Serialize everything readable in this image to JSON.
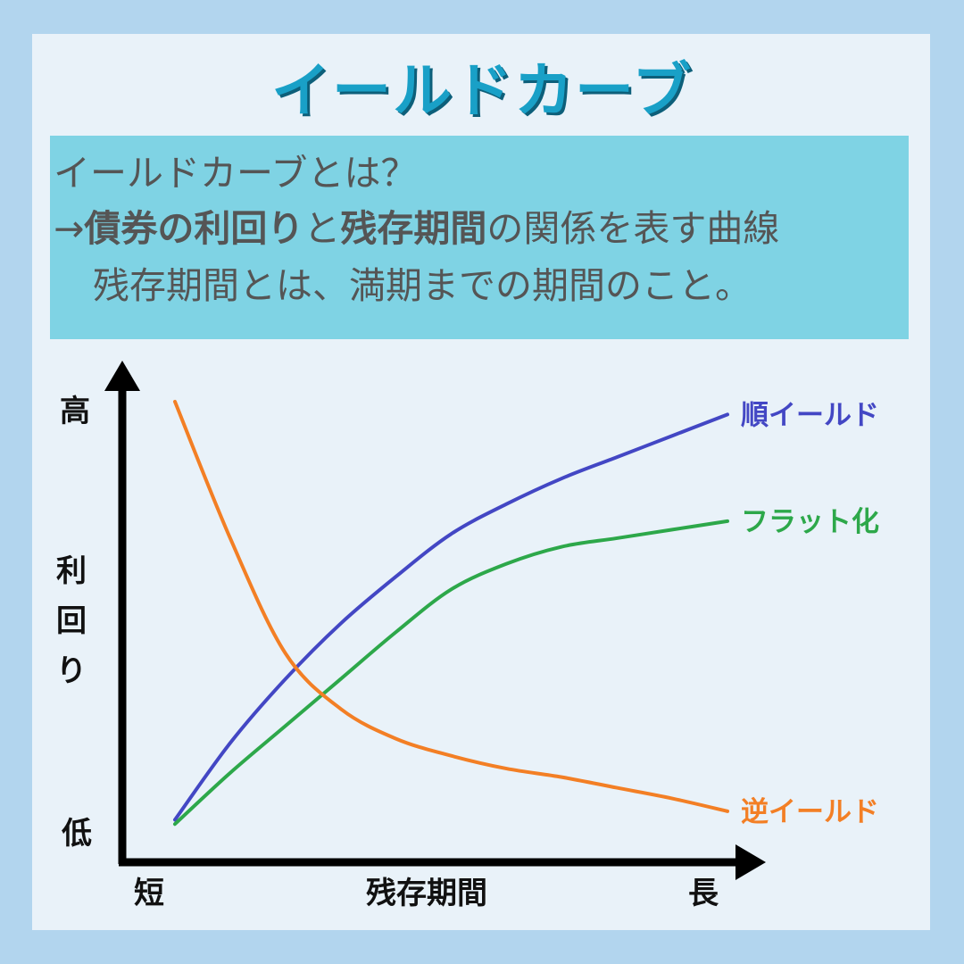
{
  "title": "イールドカーブ",
  "definition": {
    "question": "イールドカーブとは？",
    "answer_arrow": "→",
    "answer_bold1": "債券の利回り",
    "answer_mid": "と",
    "answer_bold2": "残存期間",
    "answer_rest": "の関係を表す曲線",
    "note": "残存期間とは、満期までの期間のこと。"
  },
  "colors": {
    "background": "#b2d5ee",
    "card": "#e9f2f9",
    "title": "#19a0c7",
    "definition_box": "#7fd3e4",
    "normal": "#4347c4",
    "flat": "#2da84a",
    "inverted": "#f37f25",
    "axis": "#000000"
  },
  "chart_data": {
    "type": "line",
    "title": "",
    "xlabel": "残存期間",
    "ylabel": "利回り",
    "x_tick_labels": {
      "start": "短",
      "end": "長"
    },
    "y_tick_labels": {
      "low": "低",
      "high": "高"
    },
    "xlim": [
      0,
      10
    ],
    "ylim": [
      0,
      10
    ],
    "grid": false,
    "legend": "line-end labels on the right",
    "series": [
      {
        "name": "順イールド",
        "color": "#4347c4",
        "x": [
          0,
          1,
          2,
          3,
          4,
          5,
          6,
          7,
          8,
          9,
          10
        ],
        "y": [
          0.2,
          2.0,
          3.5,
          4.8,
          5.9,
          6.9,
          7.6,
          8.2,
          8.7,
          9.2,
          9.7
        ]
      },
      {
        "name": "フラット化",
        "color": "#2da84a",
        "x": [
          0,
          1,
          2,
          3,
          4,
          5,
          6,
          7,
          8,
          9,
          10
        ],
        "y": [
          0.1,
          1.3,
          2.4,
          3.5,
          4.6,
          5.6,
          6.2,
          6.6,
          6.8,
          7.0,
          7.2
        ]
      },
      {
        "name": "逆イールド",
        "color": "#f37f25",
        "x": [
          0,
          1,
          2,
          3,
          4,
          5,
          6,
          7,
          8,
          9,
          10
        ],
        "y": [
          10.0,
          6.8,
          4.1,
          2.8,
          2.1,
          1.7,
          1.4,
          1.2,
          0.95,
          0.7,
          0.4
        ]
      }
    ]
  }
}
